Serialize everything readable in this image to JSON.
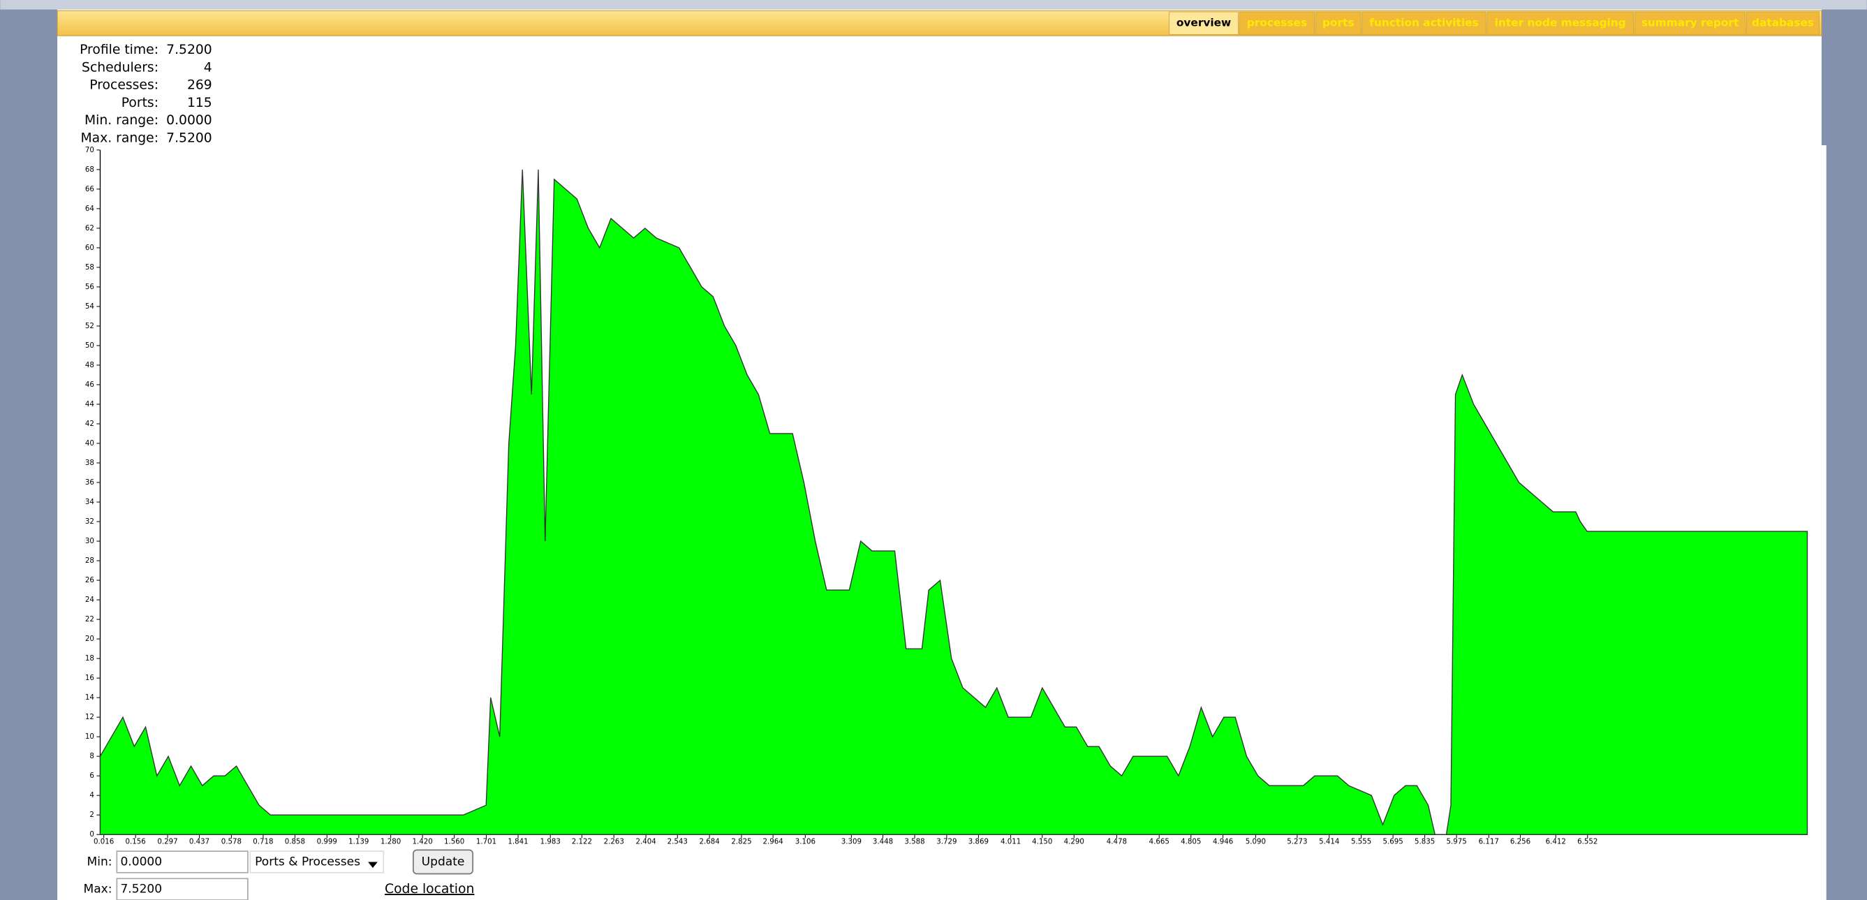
{
  "header": {
    "tabs": [
      "overview",
      "processes",
      "ports",
      "function activities",
      "inter node messaging",
      "summary report",
      "databases"
    ]
  },
  "stats": [
    {
      "label": "Profile time:",
      "value": "7.5200"
    },
    {
      "label": "Schedulers:",
      "value": "4"
    },
    {
      "label": "Processes:",
      "value": "269"
    },
    {
      "label": "Ports:",
      "value": "115"
    },
    {
      "label": "Min. range:",
      "value": "0.0000"
    },
    {
      "label": "Max. range:",
      "value": "7.5200"
    }
  ],
  "chart_data": {
    "type": "area",
    "color": "#00ff00",
    "x": [
      0,
      0.05,
      0.1,
      0.15,
      0.2,
      0.25,
      0.3,
      0.35,
      0.4,
      0.45,
      0.5,
      0.55,
      0.6,
      0.65,
      0.7,
      0.75,
      0.8,
      1.0,
      1.2,
      1.4,
      1.6,
      1.7,
      1.72,
      1.76,
      1.8,
      1.83,
      1.86,
      1.9,
      1.93,
      1.96,
      2.0,
      2.05,
      2.1,
      2.15,
      2.2,
      2.25,
      2.3,
      2.35,
      2.4,
      2.45,
      2.55,
      2.6,
      2.65,
      2.7,
      2.75,
      2.8,
      2.85,
      2.9,
      2.95,
      3.05,
      3.1,
      3.15,
      3.2,
      3.3,
      3.35,
      3.4,
      3.5,
      3.55,
      3.62,
      3.65,
      3.7,
      3.75,
      3.8,
      3.85,
      3.9,
      3.95,
      4.0,
      4.1,
      4.15,
      4.2,
      4.25,
      4.3,
      4.35,
      4.4,
      4.45,
      4.5,
      4.55,
      4.7,
      4.75,
      4.8,
      4.85,
      4.9,
      4.95,
      5.0,
      5.05,
      5.1,
      5.15,
      5.3,
      5.35,
      5.45,
      5.5,
      5.6,
      5.65,
      5.7,
      5.75,
      5.8,
      5.85,
      5.88,
      5.93,
      5.95,
      5.97,
      6.0,
      6.05,
      6.1,
      6.15,
      6.2,
      6.25,
      6.3,
      6.35,
      6.4,
      6.5,
      6.52,
      6.55,
      7.52
    ],
    "values": [
      8,
      10,
      12,
      9,
      11,
      6,
      8,
      5,
      7,
      5,
      6,
      6,
      7,
      5,
      3,
      2,
      2,
      2,
      2,
      2,
      2,
      3,
      14,
      10,
      40,
      50,
      68,
      45,
      68,
      30,
      67,
      66,
      65,
      62,
      60,
      63,
      62,
      61,
      62,
      61,
      60,
      58,
      56,
      55,
      52,
      50,
      47,
      45,
      41,
      41,
      36,
      30,
      25,
      25,
      30,
      29,
      29,
      19,
      19,
      25,
      26,
      18,
      15,
      14,
      13,
      15,
      12,
      12,
      15,
      13,
      11,
      11,
      9,
      9,
      7,
      6,
      8,
      8,
      6,
      9,
      13,
      10,
      12,
      12,
      8,
      6,
      5,
      5,
      6,
      6,
      5,
      4,
      1,
      4,
      5,
      5,
      3,
      0,
      0,
      3,
      45,
      47,
      44,
      42,
      40,
      38,
      36,
      35,
      34,
      33,
      33,
      32,
      31,
      31
    ],
    "xlim": [
      0,
      7.52
    ],
    "ylim": [
      0,
      70
    ],
    "yticks": [
      0,
      2,
      4,
      6,
      8,
      10,
      12,
      14,
      16,
      18,
      20,
      22,
      24,
      26,
      28,
      30,
      32,
      34,
      36,
      38,
      40,
      42,
      44,
      46,
      48,
      50,
      52,
      54,
      56,
      58,
      60,
      62,
      64,
      66,
      68,
      70
    ],
    "xticks": [
      0.016,
      0.156,
      0.297,
      0.437,
      0.578,
      0.718,
      0.858,
      0.999,
      1.139,
      {
        "value": 1.28,
        "label": "1.280"
      },
      {
        "value": 1.42,
        "label": "1.420"
      },
      {
        "value": 1.56,
        "label": "1.560"
      },
      1.701,
      1.841,
      1.983,
      2.122,
      2.263,
      2.404,
      2.543,
      2.684,
      2.825,
      2.964,
      3.106,
      3.309,
      3.448,
      3.588,
      3.729,
      3.869,
      4.011,
      {
        "value": 4.15,
        "label": "4.150"
      },
      {
        "value": 4.29,
        "label": "4.290"
      },
      4.478,
      4.665,
      4.805,
      4.946,
      {
        "value": 5.09,
        "label": "5.090"
      },
      5.273,
      5.414,
      5.555,
      5.695,
      5.835,
      5.975,
      6.117,
      6.256,
      6.412,
      6.552
    ]
  },
  "controls": {
    "min_label": "Min:",
    "min_value": "0.0000",
    "select": "Ports & Processes",
    "button": "Update",
    "max_label": "Max:",
    "max_value": "7.5200",
    "link": "Code location"
  }
}
